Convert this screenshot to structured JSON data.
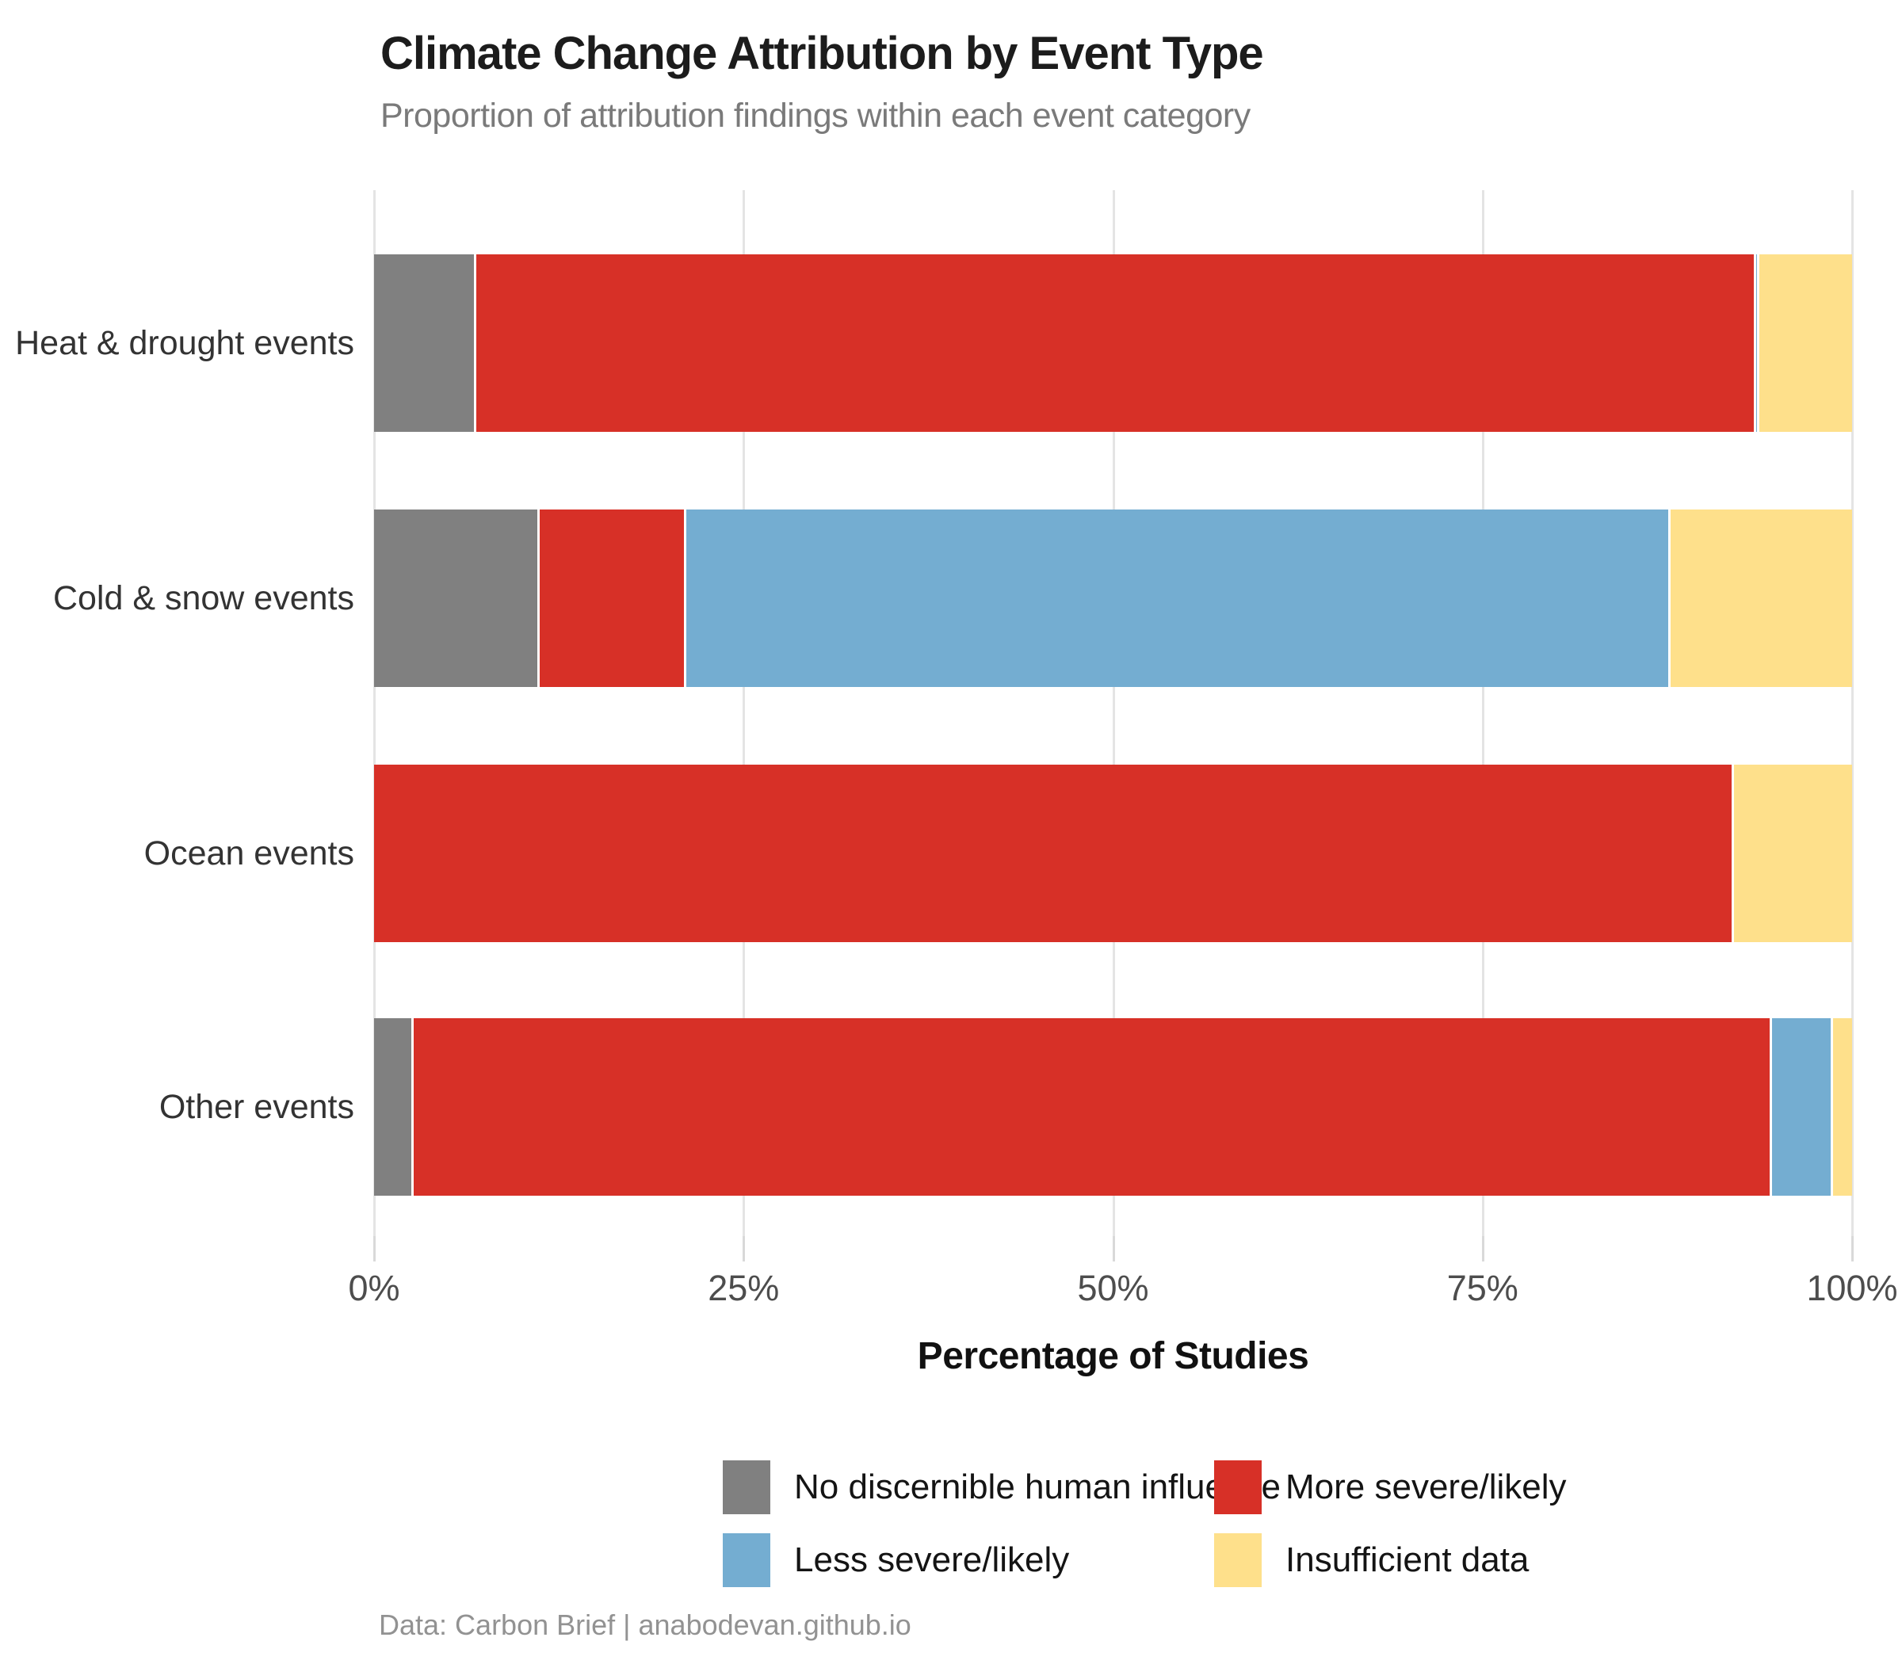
{
  "header": {
    "title": "Climate Change Attribution by Event Type",
    "subtitle": "Proportion of attribution findings within each event category"
  },
  "chart_data": {
    "type": "bar",
    "orientation": "horizontal",
    "stacked": true,
    "title": "Climate Change Attribution by Event Type",
    "subtitle": "Proportion of attribution findings within each event category",
    "categories": [
      "Heat & drought events",
      "Cold & snow events",
      "Ocean events",
      "Other events"
    ],
    "series": [
      {
        "name": "No discernible human influence",
        "color": "#808080",
        "values": [
          6.9,
          11.2,
          0,
          2.7
        ]
      },
      {
        "name": "More severe/likely",
        "color": "#d73027",
        "values": [
          86.6,
          9.9,
          92.0,
          91.9
        ]
      },
      {
        "name": "Less severe/likely",
        "color": "#74add1",
        "values": [
          0.2,
          66.6,
          0,
          4.1
        ]
      },
      {
        "name": "Insufficient data",
        "color": "#fee08b",
        "values": [
          6.3,
          12.3,
          8.0,
          1.3
        ]
      }
    ],
    "xlabel": "Percentage of Studies",
    "ylabel": "",
    "x_ticks": [
      "0%",
      "25%",
      "50%",
      "75%",
      "100%"
    ],
    "x_tick_values": [
      0,
      25,
      50,
      75,
      100
    ],
    "xlim": [
      0,
      100
    ],
    "grid": "vertical-only",
    "legend_position": "bottom",
    "legend_columns": 2
  },
  "footer": {
    "caption": "Data: Carbon Brief | anabodevan.github.io"
  }
}
